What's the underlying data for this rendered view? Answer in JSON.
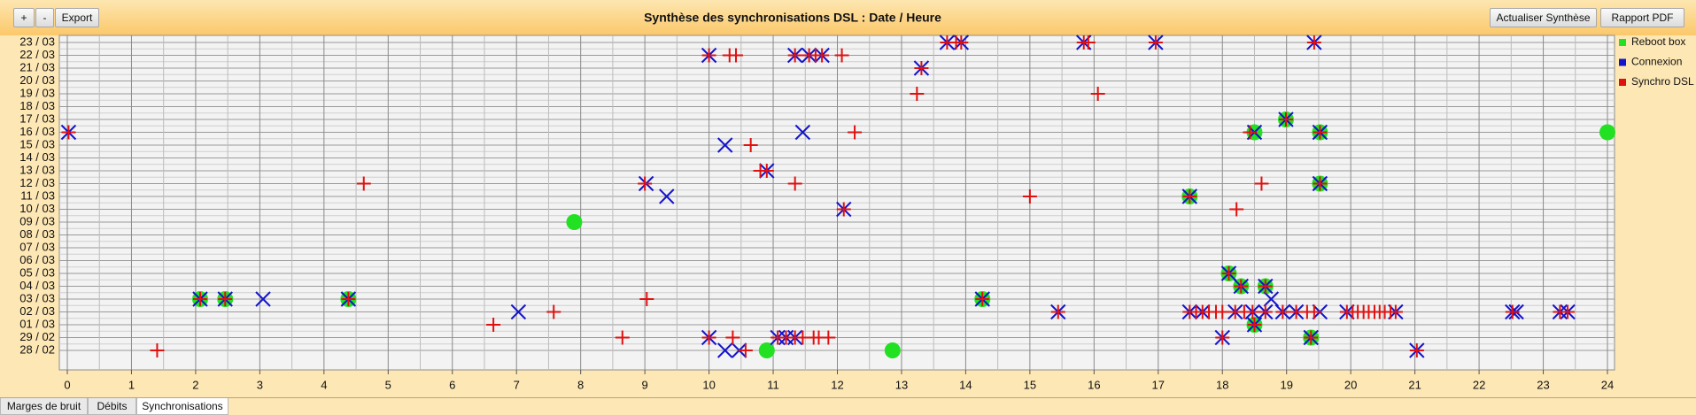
{
  "toolbar": {
    "left_buttons": [
      "+",
      "-",
      "Export"
    ],
    "right_buttons": [
      "Actualiser Synthèse",
      "Rapport PDF"
    ]
  },
  "tabs": [
    "Marges de bruit",
    "Débits",
    "Synchronisations"
  ],
  "chart_data": {
    "type": "scatter",
    "title": "Synthèse des synchronisations DSL : Date / Heure",
    "xlim": [
      0,
      24
    ],
    "xticks": [
      0,
      1,
      2,
      3,
      4,
      5,
      6,
      7,
      8,
      9,
      10,
      11,
      12,
      13,
      14,
      15,
      16,
      17,
      18,
      19,
      20,
      21,
      22,
      23,
      24
    ],
    "categories": [
      "28 / 02",
      "29 / 02",
      "01 / 03",
      "02 / 03",
      "03 / 03",
      "04 / 03",
      "05 / 03",
      "06 / 03",
      "07 / 03",
      "08 / 03",
      "09 / 03",
      "10 / 03",
      "11 / 03",
      "12 / 03",
      "13 / 03",
      "14 / 03",
      "15 / 03",
      "16 / 03",
      "17 / 03",
      "18 / 03",
      "19 / 03",
      "20 / 03",
      "21 / 03",
      "22 / 03",
      "23 / 03"
    ],
    "grid": true,
    "legend": "right",
    "series": [
      {
        "name": "Reboot box",
        "color": "#22e022",
        "marker": "circle",
        "x": [
          2.07,
          2.46,
          4.38,
          7.9,
          10.9,
          12.86,
          14.26,
          17.49,
          18.1,
          18.29,
          18.67,
          18.5,
          18.99,
          19.52,
          19.52,
          18.5,
          19.38,
          24
        ],
        "y": [
          "03 / 03",
          "03 / 03",
          "03 / 03",
          "09 / 03",
          "28 / 02",
          "28 / 02",
          "03 / 03",
          "11 / 03",
          "05 / 03",
          "04 / 03",
          "04 / 03",
          "16 / 03",
          "17 / 03",
          "16 / 03",
          "12 / 03",
          "01 / 03",
          "29 / 02",
          "16 / 03"
        ]
      },
      {
        "name": "Connexion",
        "color": "#1414cc",
        "marker": "x",
        "x": [
          0.02,
          2.07,
          2.46,
          3.05,
          4.38,
          7.03,
          9.02,
          9.34,
          10.0,
          10.25,
          10.0,
          10.25,
          10.47,
          10.9,
          11.46,
          11.07,
          11.2,
          11.34,
          11.34,
          11.56,
          11.76,
          12.1,
          13.31,
          13.71,
          13.93,
          14.26,
          15.44,
          15.84,
          16.96,
          17.49,
          18.0,
          18.1,
          18.29,
          18.5,
          18.5,
          18.67,
          18.76,
          18.99,
          19.52,
          19.52,
          19.38,
          19.43,
          17.49,
          17.69,
          18.2,
          18.47,
          18.67,
          18.94,
          19.15,
          19.52,
          19.94,
          20.7,
          21.03,
          22.52,
          22.58,
          23.26,
          23.38
        ],
        "y": [
          "16 / 03",
          "03 / 03",
          "03 / 03",
          "03 / 03",
          "03 / 03",
          "02 / 03",
          "12 / 03",
          "11 / 03",
          "22 / 03",
          "15 / 03",
          "29 / 02",
          "28 / 02",
          "28 / 02",
          "13 / 03",
          "16 / 03",
          "29 / 02",
          "29 / 02",
          "29 / 02",
          "22 / 03",
          "22 / 03",
          "22 / 03",
          "10 / 03",
          "21 / 03",
          "23 / 03",
          "23 / 03",
          "03 / 03",
          "02 / 03",
          "23 / 03",
          "23 / 03",
          "11 / 03",
          "29 / 02",
          "05 / 03",
          "04 / 03",
          "16 / 03",
          "01 / 03",
          "04 / 03",
          "03 / 03",
          "17 / 03",
          "16 / 03",
          "12 / 03",
          "29 / 02",
          "23 / 03",
          "02 / 03",
          "02 / 03",
          "02 / 03",
          "02 / 03",
          "02 / 03",
          "02 / 03",
          "02 / 03",
          "02 / 03",
          "02 / 03",
          "02 / 03",
          "28 / 02",
          "02 / 03",
          "02 / 03",
          "02 / 03",
          "02 / 03"
        ]
      },
      {
        "name": "Synchro DSL",
        "color": "#e01010",
        "marker": "plus",
        "x": [
          0.02,
          1.4,
          2.07,
          2.46,
          4.38,
          4.62,
          6.64,
          7.58,
          8.65,
          9.03,
          9.0,
          10.0,
          10.32,
          10.42,
          10.65,
          10.8,
          10.9,
          11.34,
          10.0,
          10.37,
          10.57,
          11.07,
          11.2,
          11.34,
          11.46,
          11.63,
          11.71,
          11.86,
          11.34,
          11.56,
          11.66,
          11.76,
          12.07,
          12.27,
          12.1,
          13.24,
          13.31,
          13.71,
          13.85,
          13.93,
          14.26,
          15.0,
          15.44,
          15.84,
          15.91,
          16.06,
          16.96,
          17.49,
          18.0,
          18.1,
          18.22,
          18.29,
          18.43,
          18.5,
          18.61,
          18.67,
          18.99,
          19.38,
          19.43,
          19.52,
          19.52,
          21.03,
          22.52,
          23.26,
          23.38,
          17.49,
          17.59,
          17.69,
          17.79,
          17.9,
          18.0,
          18.2,
          18.34,
          18.47,
          18.67,
          18.94,
          19.15,
          19.32,
          19.43,
          19.94,
          20.03,
          20.11,
          20.2,
          20.28,
          20.37,
          20.45,
          20.53,
          20.62,
          20.7
        ],
        "y": [
          "16 / 03",
          "28 / 02",
          "03 / 03",
          "03 / 03",
          "03 / 03",
          "12 / 03",
          "01 / 03",
          "02 / 03",
          "29 / 02",
          "03 / 03",
          "12 / 03",
          "22 / 03",
          "22 / 03",
          "22 / 03",
          "15 / 03",
          "13 / 03",
          "13 / 03",
          "12 / 03",
          "29 / 02",
          "29 / 02",
          "28 / 02",
          "29 / 02",
          "29 / 02",
          "29 / 02",
          "29 / 02",
          "29 / 02",
          "29 / 02",
          "29 / 02",
          "22 / 03",
          "22 / 03",
          "22 / 03",
          "22 / 03",
          "22 / 03",
          "16 / 03",
          "10 / 03",
          "19 / 03",
          "21 / 03",
          "23 / 03",
          "23 / 03",
          "23 / 03",
          "03 / 03",
          "11 / 03",
          "02 / 03",
          "23 / 03",
          "23 / 03",
          "19 / 03",
          "23 / 03",
          "11 / 03",
          "29 / 02",
          "05 / 03",
          "10 / 03",
          "04 / 03",
          "16 / 03",
          "01 / 03",
          "12 / 03",
          "04 / 03",
          "17 / 03",
          "29 / 02",
          "23 / 03",
          "16 / 03",
          "12 / 03",
          "28 / 02",
          "02 / 03",
          "02 / 03",
          "02 / 03",
          "02 / 03",
          "02 / 03",
          "02 / 03",
          "02 / 03",
          "02 / 03",
          "02 / 03",
          "02 / 03",
          "02 / 03",
          "02 / 03",
          "02 / 03",
          "02 / 03",
          "02 / 03",
          "02 / 03",
          "02 / 03",
          "02 / 03",
          "02 / 03",
          "02 / 03",
          "02 / 03",
          "02 / 03",
          "02 / 03",
          "02 / 03",
          "02 / 03",
          "02 / 03",
          "02 / 03"
        ]
      }
    ]
  }
}
